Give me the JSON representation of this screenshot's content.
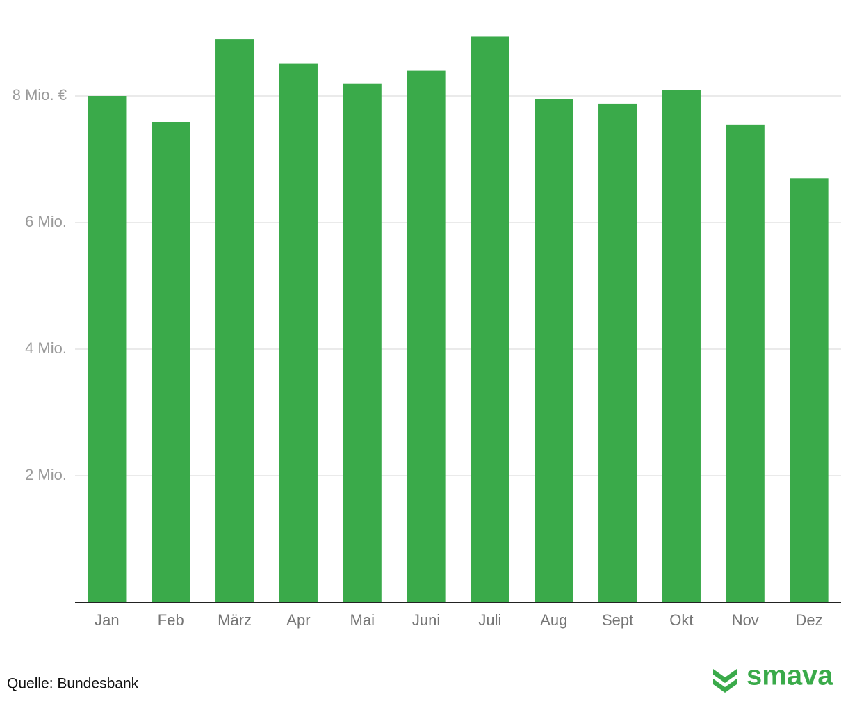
{
  "chart_data": {
    "type": "bar",
    "categories": [
      "Jan",
      "Feb",
      "März",
      "Apr",
      "Mai",
      "Juni",
      "Juli",
      "Aug",
      "Sept",
      "Okt",
      "Nov",
      "Dez"
    ],
    "values": [
      8.0,
      7.59,
      8.9,
      8.51,
      8.19,
      8.4,
      8.94,
      7.95,
      7.88,
      8.09,
      7.54,
      6.7
    ],
    "color": "#3aaa4a",
    "ylim": [
      0,
      9.5
    ],
    "yticks": [
      {
        "value": 2,
        "label": "2 Mio."
      },
      {
        "value": 4,
        "label": "4 Mio."
      },
      {
        "value": 6,
        "label": "6 Mio."
      },
      {
        "value": 8,
        "label": "8 Mio. €"
      }
    ],
    "grid": true,
    "source": "Quelle: Bundesbank",
    "brand": "smava"
  }
}
